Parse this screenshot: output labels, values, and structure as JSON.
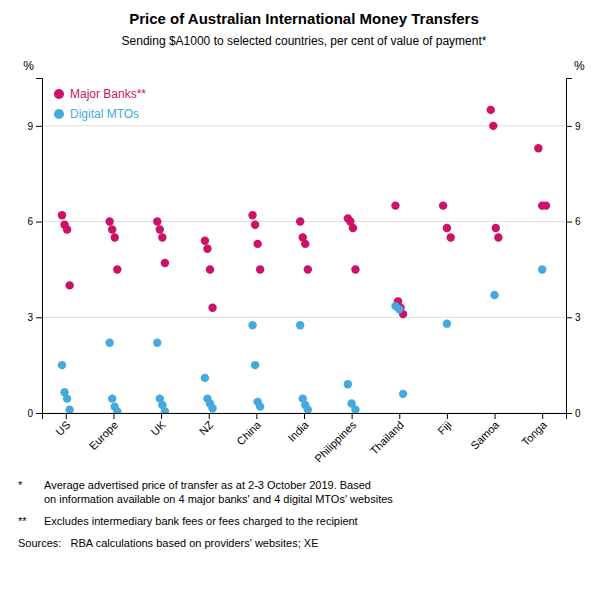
{
  "chart_data": {
    "type": "scatter",
    "title": "Price of Australian International Money Transfers",
    "subtitle": "Sending $A1000 to selected countries, per cent of value of payment*",
    "categories": [
      "US",
      "Europe",
      "UK",
      "NZ",
      "China",
      "India",
      "Philippines",
      "Thailand",
      "Fiji",
      "Samoa",
      "Tonga"
    ],
    "series": [
      {
        "name": "Major Banks**",
        "color": "#CC1166",
        "values": [
          [
            6.2,
            5.9,
            5.75,
            4.0
          ],
          [
            6.0,
            5.75,
            5.5,
            4.5
          ],
          [
            6.0,
            5.75,
            5.5,
            4.7
          ],
          [
            5.4,
            5.15,
            4.5,
            3.3
          ],
          [
            6.2,
            5.9,
            5.3,
            4.5
          ],
          [
            6.0,
            5.5,
            5.3,
            4.5
          ],
          [
            6.1,
            6.0,
            5.8,
            4.5
          ],
          [
            6.5,
            3.5,
            3.3,
            3.1
          ],
          [
            6.5,
            5.8,
            5.5
          ],
          [
            9.5,
            9.0,
            5.8,
            5.5
          ],
          [
            8.3,
            6.5,
            6.5
          ]
        ]
      },
      {
        "name": "Digital MTOs",
        "color": "#44AADD",
        "values": [
          [
            1.5,
            0.65,
            0.45,
            0.1
          ],
          [
            2.2,
            0.45,
            0.2,
            0.05
          ],
          [
            2.2,
            0.45,
            0.25,
            0.05
          ],
          [
            1.1,
            0.45,
            0.3,
            0.15
          ],
          [
            2.75,
            1.5,
            0.35,
            0.2
          ],
          [
            2.75,
            0.45,
            0.25,
            0.1
          ],
          [
            0.9,
            0.3,
            0.1
          ],
          [
            3.35,
            3.25,
            0.6
          ],
          [
            2.8
          ],
          [
            3.7
          ],
          [
            4.5
          ]
        ]
      }
    ],
    "ylim": [
      0,
      10.5
    ],
    "yticks": [
      0,
      3,
      6,
      9
    ],
    "y2lim": [
      0,
      10.5
    ],
    "y2ticks": [
      0,
      3,
      6,
      9
    ],
    "ylabel": "%",
    "y2label": "%",
    "grid": true,
    "legend": "upper left",
    "footnotes": [
      {
        "mark": "*",
        "text": "Average advertised price of transfer as at 2-3 October 2019. Based\non information available on 4 major banks' and 4 digital MTOs' websites"
      },
      {
        "mark": "**",
        "text": "Excludes intermediary bank fees or fees charged to the recipient"
      },
      {
        "text": "Sources:   RBA calculations based on providers' websites; XE"
      }
    ]
  }
}
